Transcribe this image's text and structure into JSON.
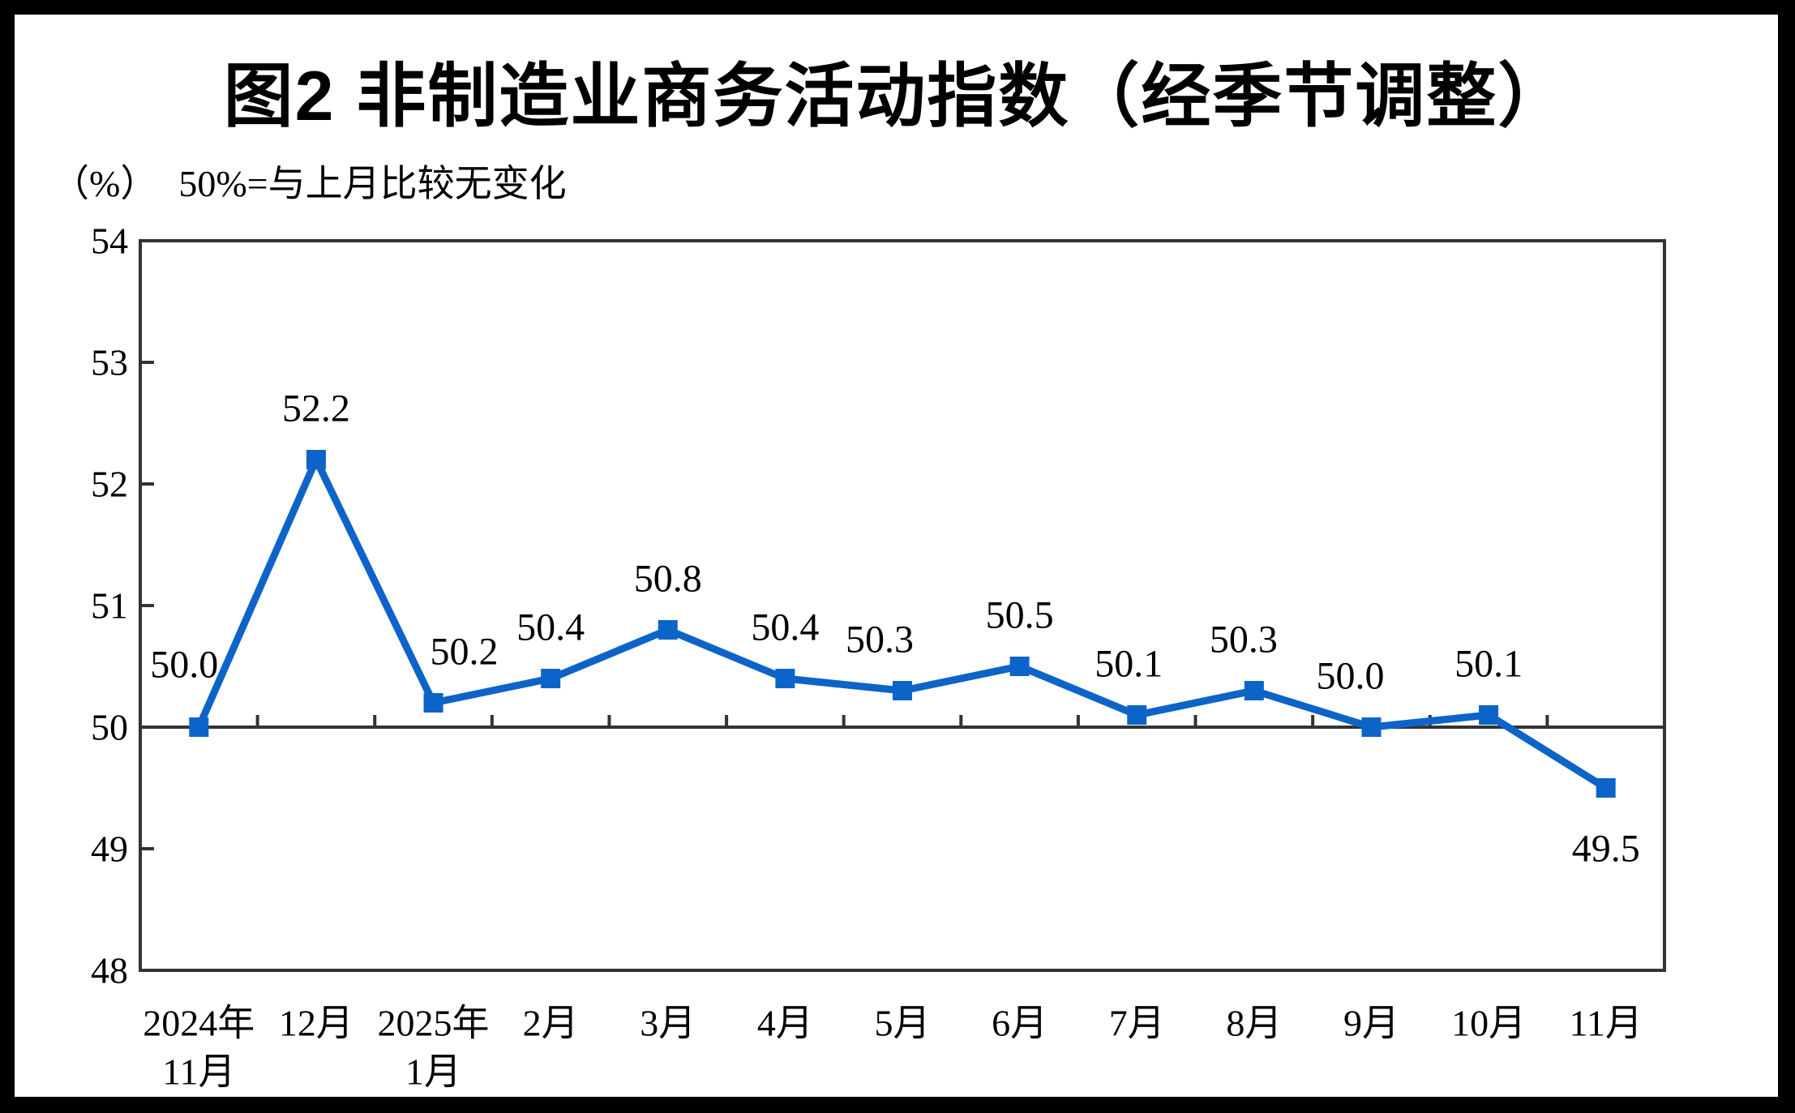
{
  "page": {
    "title": "图2 非制造业商务活动指数（经季节调整）",
    "unit_label": "（%）",
    "reference_note": "50%=与上月比较无变化"
  },
  "chart_data": {
    "type": "line",
    "title": "图2 非制造业商务活动指数（经季节调整）",
    "unit_label": "（%）",
    "note": "50%=与上月比较无变化",
    "categories": [
      "2024年11月",
      "12月",
      "2025年1月",
      "2月",
      "3月",
      "4月",
      "5月",
      "6月",
      "7月",
      "8月",
      "9月",
      "10月",
      "11月"
    ],
    "category_label_lines": [
      [
        "2024年",
        "11月"
      ],
      [
        "12月"
      ],
      [
        "2025年",
        "1月"
      ],
      [
        "2月"
      ],
      [
        "3月"
      ],
      [
        "4月"
      ],
      [
        "5月"
      ],
      [
        "6月"
      ],
      [
        "7月"
      ],
      [
        "8月"
      ],
      [
        "9月"
      ],
      [
        "10月"
      ],
      [
        "11月"
      ]
    ],
    "values": [
      50.0,
      52.2,
      50.2,
      50.4,
      50.8,
      50.4,
      50.3,
      50.5,
      50.1,
      50.3,
      50.0,
      50.1,
      49.5
    ],
    "data_labels": [
      "50.0",
      "52.2",
      "50.2",
      "50.4",
      "50.8",
      "50.4",
      "50.3",
      "50.5",
      "50.1",
      "50.3",
      "50.0",
      "50.1",
      "49.5"
    ],
    "ylim": [
      48,
      54
    ],
    "yticks": [
      54,
      53,
      52,
      51,
      50,
      49,
      48
    ],
    "reference_line": 50,
    "xlabel": "",
    "ylabel": "（%）",
    "grid": false,
    "legend": false,
    "marker_shape": "square",
    "colors": {
      "line": "#0D64C8",
      "marker": "#0D64C8",
      "axis": "#333333",
      "text": "#000000",
      "page_bg": "#FFFFFF",
      "frame_bg": "#000000"
    }
  }
}
